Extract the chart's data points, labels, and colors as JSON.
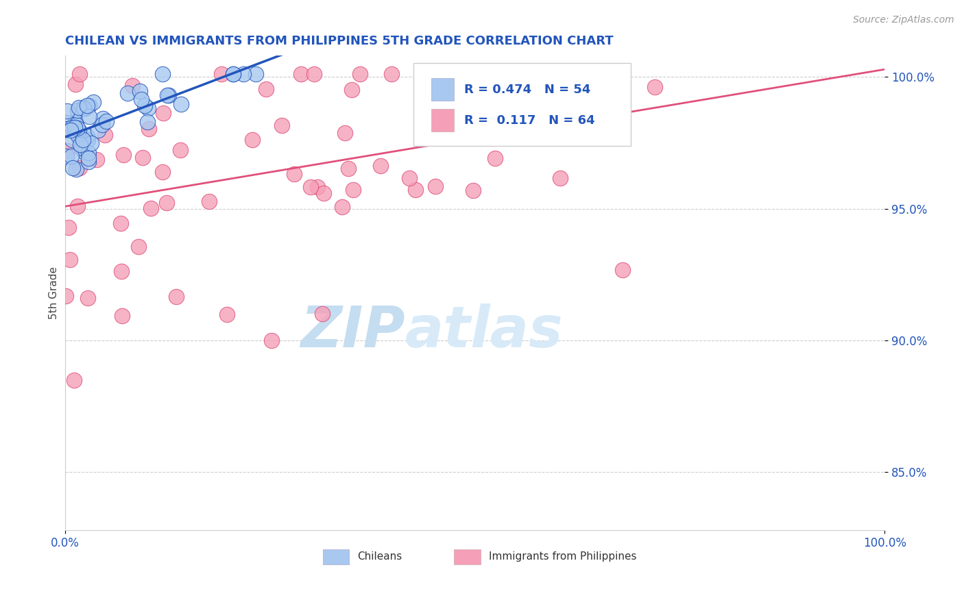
{
  "title": "CHILEAN VS IMMIGRANTS FROM PHILIPPINES 5TH GRADE CORRELATION CHART",
  "source": "Source: ZipAtlas.com",
  "ylabel": "5th Grade",
  "xmin": 0.0,
  "xmax": 1.0,
  "ymin": 0.828,
  "ymax": 1.008,
  "r_chilean": 0.474,
  "n_chilean": 54,
  "r_philippines": 0.117,
  "n_philippines": 64,
  "legend_labels": [
    "Chileans",
    "Immigrants from Philippines"
  ],
  "chilean_color": "#a8c8f0",
  "chilean_line_color": "#2255bb",
  "philippines_color": "#f5a0b8",
  "philippines_line_color": "#e0507a",
  "background_color": "#ffffff",
  "title_color": "#2255bb",
  "source_color": "#999999",
  "watermark_zip": "ZIP",
  "watermark_atlas": "atlas",
  "watermark_color": "#d0e8f8",
  "ytick_vals": [
    0.85,
    0.9,
    0.95,
    1.0
  ],
  "ytick_labels": [
    "85.0%",
    "90.0%",
    "95.0%",
    "100.0%"
  ]
}
